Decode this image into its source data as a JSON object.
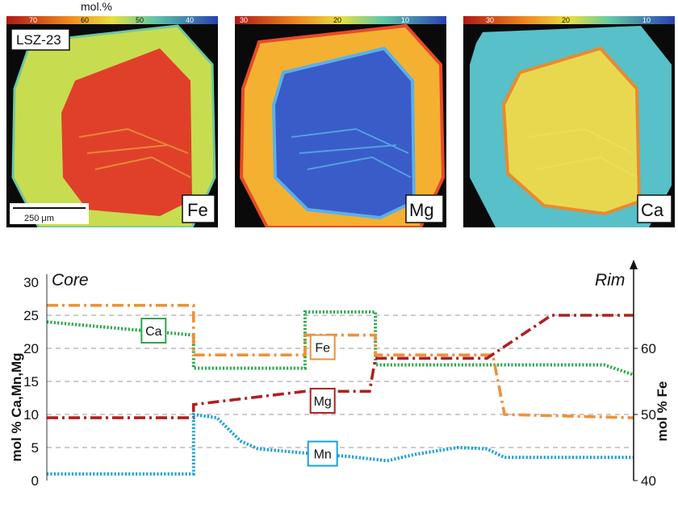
{
  "maps": {
    "unit_label": "mol.%",
    "sample": "LSZ-23",
    "scale_bar": "250 μm",
    "panels": [
      {
        "element": "Fe",
        "ticks": [
          "70",
          "60",
          "50",
          "40"
        ],
        "colors": {
          "outer": "#c8dc50",
          "outer_edge": "#6cc8a0",
          "core": "#e0402a",
          "rim_line": "#e89a3a"
        }
      },
      {
        "element": "Mg",
        "ticks": [
          "30",
          "20",
          "10"
        ],
        "colors": {
          "outer": "#f4b030",
          "outer_edge": "#e84a28",
          "core": "#3a5cc8",
          "rim_line": "#5ab0e8"
        }
      },
      {
        "element": "Ca",
        "ticks": [
          "30",
          "20",
          "10"
        ],
        "colors": {
          "outer": "#58c0c8",
          "outer_edge": "#70c8b0",
          "core": "#e8d850",
          "rim_line": "#e88a30"
        }
      }
    ]
  },
  "chart_data": {
    "type": "line",
    "title": "",
    "left_label": "Core",
    "right_label": "Rim",
    "ylabel_left": "mol % Ca,Mn,Mg",
    "ylabel_right": "mol % Fe",
    "ylim_left": [
      0,
      30
    ],
    "yticks_left": [
      0,
      5,
      10,
      15,
      20,
      25,
      30
    ],
    "ylim_right": [
      40,
      70
    ],
    "yticks_right": [
      40,
      50,
      60
    ],
    "grid": "dashed horizontal at 5, 10, 15, 20, 25",
    "x_description": "profile position from core (0) to rim (1)",
    "series": [
      {
        "name": "Ca",
        "axis": "left",
        "color": "#2aa84a",
        "style": "dotted",
        "points": [
          [
            0,
            24
          ],
          [
            0.25,
            22
          ],
          [
            0.25,
            17
          ],
          [
            0.44,
            17
          ],
          [
            0.44,
            25.5
          ],
          [
            0.56,
            25.5
          ],
          [
            0.56,
            17.5
          ],
          [
            0.95,
            17.5
          ],
          [
            1.0,
            16
          ]
        ]
      },
      {
        "name": "Fe",
        "axis": "right",
        "color": "#f0903a",
        "style": "dashdot",
        "points": [
          [
            0,
            66.5
          ],
          [
            0.25,
            66.5
          ],
          [
            0.25,
            59
          ],
          [
            0.44,
            59
          ],
          [
            0.44,
            62
          ],
          [
            0.56,
            62
          ],
          [
            0.56,
            59
          ],
          [
            0.76,
            59
          ],
          [
            0.78,
            50
          ],
          [
            1.0,
            49.5
          ]
        ]
      },
      {
        "name": "Mg",
        "axis": "left",
        "color": "#b02020",
        "style": "dashdot",
        "points": [
          [
            0,
            9.5
          ],
          [
            0.25,
            9.5
          ],
          [
            0.25,
            11.5
          ],
          [
            0.44,
            13.5
          ],
          [
            0.55,
            13.5
          ],
          [
            0.56,
            18.5
          ],
          [
            0.75,
            18.5
          ],
          [
            0.86,
            25
          ],
          [
            1.0,
            25
          ]
        ]
      },
      {
        "name": "Mn",
        "axis": "left",
        "color": "#1aa0d8",
        "style": "dotted",
        "points": [
          [
            0,
            1
          ],
          [
            0.25,
            1
          ],
          [
            0.25,
            10
          ],
          [
            0.29,
            9.5
          ],
          [
            0.33,
            6
          ],
          [
            0.36,
            4.8
          ],
          [
            0.46,
            4
          ],
          [
            0.52,
            3.6
          ],
          [
            0.58,
            3
          ],
          [
            0.63,
            4
          ],
          [
            0.7,
            5
          ],
          [
            0.75,
            4.8
          ],
          [
            0.78,
            3.5
          ],
          [
            1.0,
            3.5
          ]
        ]
      }
    ]
  }
}
